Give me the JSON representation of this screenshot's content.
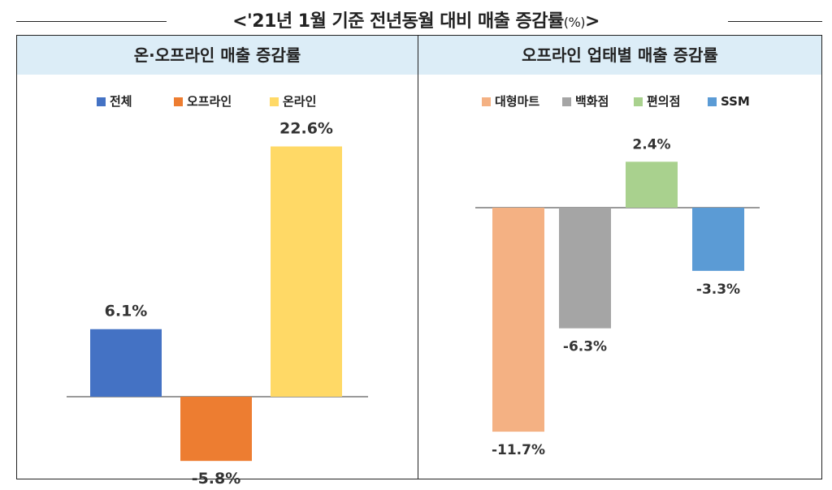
{
  "header": {
    "title": "<'21년 1월 기준 전년동월 대비 매출 증감률",
    "title_suffix": "(%)",
    "title_close": ">"
  },
  "colors": {
    "panel_header_bg": "#dcedf7",
    "total": "#4472c4",
    "offline": "#ed7d31",
    "online": "#ffd966",
    "hypermarket": "#f4b183",
    "department": "#a5a5a5",
    "convenience": "#a9d18e",
    "ssm": "#5b9bd5"
  },
  "chart_data": [
    {
      "type": "bar",
      "title": "온·오프라인 매출 증감률",
      "categories": [
        "전체",
        "오프라인",
        "온라인"
      ],
      "values": [
        6.1,
        -5.8,
        22.6
      ],
      "data_labels": [
        "6.1%",
        "-5.8%",
        "22.6%"
      ],
      "colors": [
        "#4472c4",
        "#ed7d31",
        "#ffd966"
      ],
      "legend": [
        "전체",
        "오프라인",
        "온라인"
      ],
      "legend_position": "top",
      "ylim": [
        -7,
        25
      ],
      "grid": false
    },
    {
      "type": "bar",
      "title": "오프라인 업태별 매출 증감률",
      "categories": [
        "대형마트",
        "백화점",
        "편의점",
        "SSM"
      ],
      "values": [
        -11.7,
        -6.3,
        2.4,
        -3.3
      ],
      "data_labels": [
        "-11.7%",
        "-6.3%",
        "2.4%",
        "-3.3%"
      ],
      "colors": [
        "#f4b183",
        "#a5a5a5",
        "#a9d18e",
        "#5b9bd5"
      ],
      "legend": [
        "대형마트",
        "백화점",
        "편의점",
        "SSM"
      ],
      "legend_position": "top",
      "ylim": [
        -12,
        3
      ],
      "grid": false
    }
  ]
}
